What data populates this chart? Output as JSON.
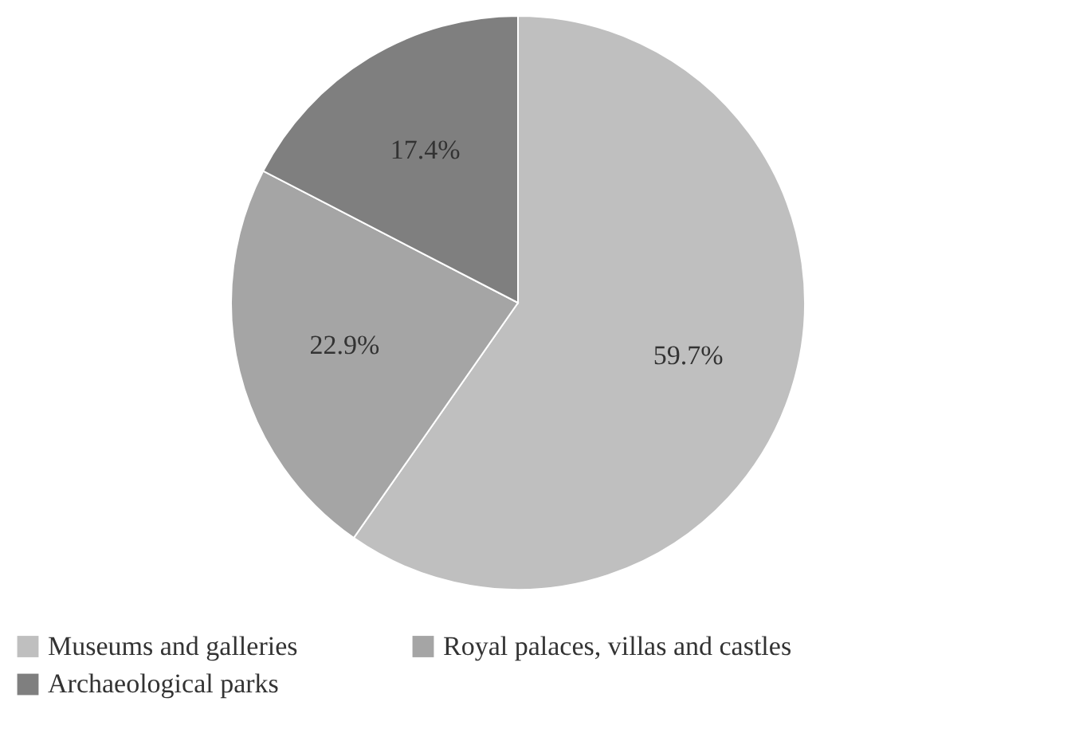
{
  "chart_data": {
    "type": "pie",
    "categories": [
      "Museums and galleries",
      "Royal palaces, villas and castles",
      "Archaeological parks"
    ],
    "values": [
      59.7,
      22.9,
      17.4
    ],
    "colors": [
      "#bfbfbf",
      "#a5a5a5",
      "#7f7f7f"
    ],
    "value_labels": [
      "59.7%",
      "22.9%",
      "17.4%"
    ],
    "legend": "bottom"
  }
}
